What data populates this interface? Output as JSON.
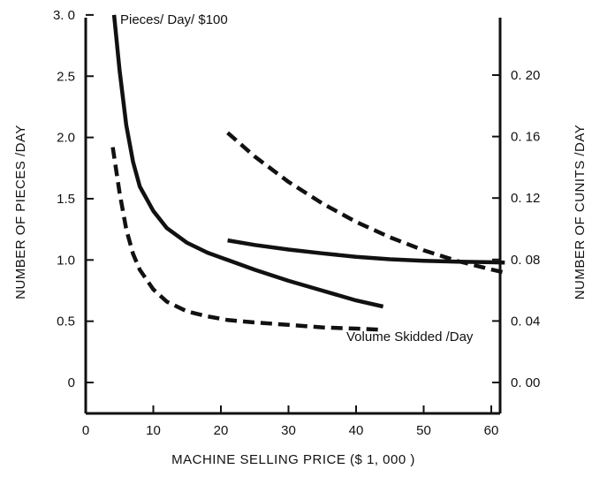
{
  "chart_data": {
    "type": "line",
    "title": "",
    "xlabel": "MACHINE SELLING PRICE ($ 1, 000 )",
    "ylabel_left": "NUMBER OF PIECES /DAY",
    "ylabel_right": "NUMBER OF CUNITS /DAY",
    "xlim": [
      0,
      70
    ],
    "ylim_left": [
      -0.25,
      3.0
    ],
    "ylim_right": [
      -0.02,
      0.24
    ],
    "x_ticks": [
      0,
      10,
      20,
      30,
      40,
      50,
      60
    ],
    "x_tick_labels": [
      "0",
      "10",
      "20",
      "30",
      "40",
      "50",
      "60"
    ],
    "y_left_ticks": [
      0,
      0.5,
      1.0,
      1.5,
      2.0,
      2.5,
      3.0
    ],
    "y_left_tick_labels": [
      "0",
      "0.5",
      "1.0",
      "1.5",
      "2.0",
      "2.5",
      "3. 0"
    ],
    "y_right_ticks": [
      0.0,
      0.04,
      0.08,
      0.12,
      0.16,
      0.2
    ],
    "y_right_tick_labels": [
      "0. 00",
      "0. 04",
      "0. 08",
      "0. 12",
      "0. 16",
      "0. 20"
    ],
    "grid": false,
    "annotations": [
      {
        "text": "Pieces/ Day/ $100"
      },
      {
        "text": "Volume Skidded /Day"
      }
    ],
    "series": [
      {
        "axis": "left",
        "style": "solid",
        "x": [
          4.2,
          5,
          6,
          7,
          8,
          10,
          12,
          15,
          18,
          21,
          25,
          30,
          35,
          40,
          44
        ],
        "y": [
          3.0,
          2.55,
          2.1,
          1.8,
          1.6,
          1.4,
          1.26,
          1.14,
          1.06,
          1.0,
          0.92,
          0.83,
          0.75,
          0.67,
          0.62
        ]
      },
      {
        "axis": "left",
        "style": "dashed",
        "x": [
          4,
          5,
          6,
          7,
          8,
          10,
          12,
          15,
          18,
          21,
          25,
          30,
          35,
          40,
          44
        ],
        "y": [
          1.92,
          1.55,
          1.25,
          1.05,
          0.92,
          0.76,
          0.66,
          0.58,
          0.54,
          0.51,
          0.49,
          0.47,
          0.45,
          0.44,
          0.43
        ]
      },
      {
        "axis": "right",
        "style": "solid",
        "x": [
          21,
          25,
          30,
          35,
          40,
          45,
          50,
          55,
          60,
          62
        ],
        "y": [
          0.0925,
          0.0895,
          0.0865,
          0.084,
          0.0818,
          0.0802,
          0.0792,
          0.0786,
          0.0782,
          0.078
        ]
      },
      {
        "axis": "right",
        "style": "dashed",
        "x": [
          21,
          25,
          30,
          35,
          40,
          45,
          50,
          55,
          60,
          62
        ],
        "y": [
          0.1625,
          0.147,
          0.1305,
          0.1165,
          0.1045,
          0.0945,
          0.086,
          0.079,
          0.0735,
          0.0715
        ]
      }
    ]
  }
}
